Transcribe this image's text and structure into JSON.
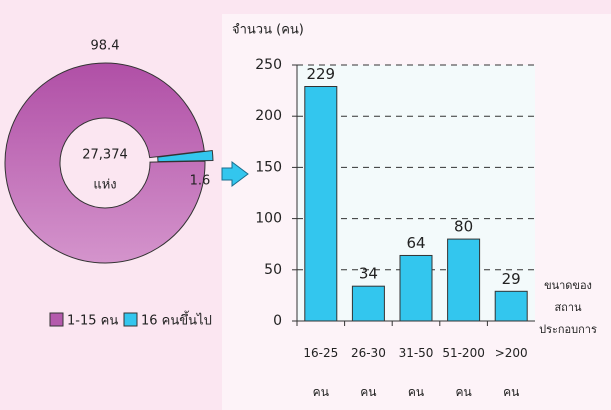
{
  "chart_data": [
    {
      "type": "donut",
      "categories": [
        "1-15 คน",
        "16 คนขึ้นไป"
      ],
      "values": [
        98.4,
        1.6
      ],
      "colors": [
        "#b45aac",
        "#33c6ee"
      ],
      "center_labels": [
        "27,374",
        "แห่ง"
      ]
    },
    {
      "type": "bar",
      "ylabel": "จำนวน (คน)",
      "xlabel": [
        "ขนาดของ",
        "สถาน",
        "ประกอบการ"
      ],
      "categories": [
        "16-25 คน",
        "26-30 คน",
        "31-50 คน",
        "51-200 คน",
        ">200 คน"
      ],
      "values": [
        229,
        34,
        64,
        80,
        29
      ],
      "color": "#33c6ee",
      "ylim": [
        0,
        250
      ],
      "yticks": [
        0,
        50,
        100,
        150,
        200,
        250
      ],
      "grid": true
    }
  ]
}
